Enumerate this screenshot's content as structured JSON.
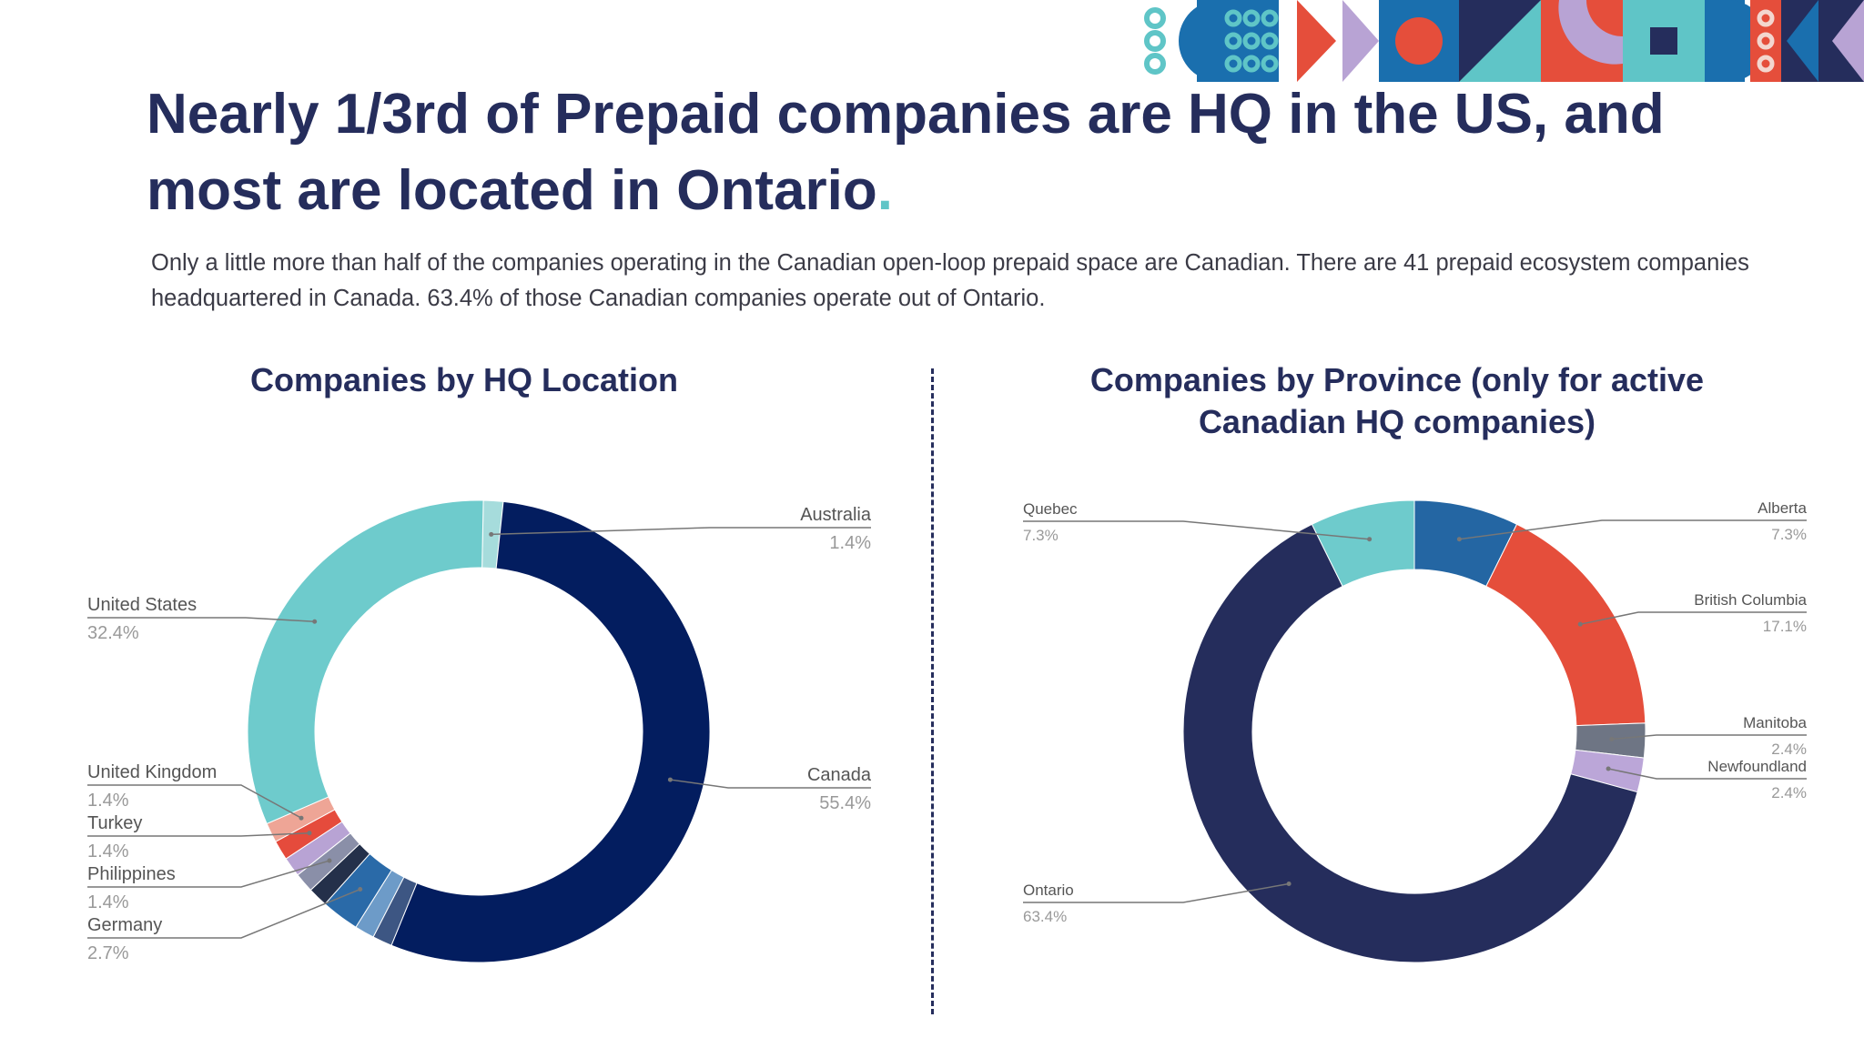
{
  "slide": {
    "title_text": "Nearly 1/3rd of Prepaid companies are HQ in the US, and most are located in Ontario",
    "title_dot": ".",
    "subtitle": "Only a little more than half of the companies operating in the Canadian open-loop prepaid space are Canadian. There are 41 prepaid ecosystem companies headquartered in Canada. 63.4% of those Canadian companies operate out of Ontario."
  },
  "colors": {
    "title": "#252d5c",
    "accent_teal": "#5fc5c7",
    "leader_line": "#777777",
    "label_name": "#555555",
    "label_value": "#999999"
  },
  "chart_data": [
    {
      "type": "pie",
      "donut": true,
      "title": "Companies by HQ Location",
      "slices": [
        {
          "name": "Australia",
          "value": 1.4,
          "value_label": "1.4%",
          "color": "#a6dcdc",
          "labeled": true
        },
        {
          "name": "Canada",
          "value": 55.4,
          "value_label": "55.4%",
          "color": "#031d5f",
          "labeled": true
        },
        {
          "name": "",
          "value": 1.4,
          "value_label": "",
          "color": "#3d5683",
          "labeled": false
        },
        {
          "name": "",
          "value": 1.4,
          "value_label": "",
          "color": "#6d9bc8",
          "labeled": false
        },
        {
          "name": "Germany",
          "value": 2.7,
          "value_label": "2.7%",
          "color": "#2a6aa8",
          "labeled": true
        },
        {
          "name": "",
          "value": 1.4,
          "value_label": "",
          "color": "#24304a",
          "labeled": false
        },
        {
          "name": "Philippines",
          "value": 1.4,
          "value_label": "1.4%",
          "color": "#8a8fa8",
          "labeled": true
        },
        {
          "name": "",
          "value": 1.4,
          "value_label": "",
          "color": "#b8a3d4",
          "labeled": false
        },
        {
          "name": "Turkey",
          "value": 1.4,
          "value_label": "1.4%",
          "color": "#e54b3c",
          "labeled": true
        },
        {
          "name": "United Kingdom",
          "value": 1.4,
          "value_label": "1.4%",
          "color": "#eea596",
          "labeled": true
        },
        {
          "name": "United States",
          "value": 32.4,
          "value_label": "32.4%",
          "color": "#6ecbcc",
          "labeled": true
        }
      ]
    },
    {
      "type": "pie",
      "donut": true,
      "title": "Companies by Province (only for active Canadian HQ companies)",
      "slices": [
        {
          "name": "Alberta",
          "value": 7.3,
          "value_label": "7.3%",
          "color": "#2466a3",
          "labeled": true
        },
        {
          "name": "British Columbia",
          "value": 17.1,
          "value_label": "17.1%",
          "color": "#e54e3b",
          "labeled": true
        },
        {
          "name": "Manitoba",
          "value": 2.4,
          "value_label": "2.4%",
          "color": "#6e7584",
          "labeled": true
        },
        {
          "name": "Newfoundland",
          "value": 2.4,
          "value_label": "2.4%",
          "color": "#bba6d8",
          "labeled": true
        },
        {
          "name": "Ontario",
          "value": 63.4,
          "value_label": "63.4%",
          "color": "#252d5c",
          "labeled": true
        },
        {
          "name": "Quebec",
          "value": 7.3,
          "value_label": "7.3%",
          "color": "#6ecbcc",
          "labeled": true
        }
      ]
    }
  ]
}
